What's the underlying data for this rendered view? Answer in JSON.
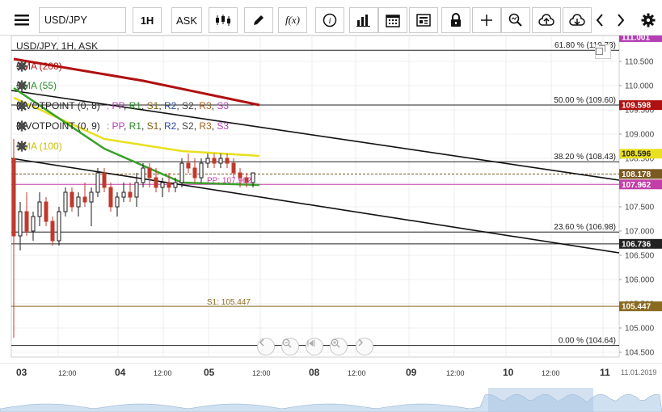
{
  "toolbar": {
    "symbol": "USD/JPY",
    "timeframe": "1H",
    "price_side": "ASK",
    "fx_label": "f(x)",
    "info_label": "i"
  },
  "legend": {
    "title": "USD/JPY, 1H, ASK",
    "sma200": "SMA (200)",
    "sma55": "SMA (55)",
    "pivot1": "PIVOTPOINT (0, 8)",
    "pivot2": "PIVOTPOINT (0, 9)",
    "sma100": "SMA (100)",
    "pivot_parts": [
      {
        "t": ": PP",
        "c": "#b43fb4"
      },
      {
        "t": ", ",
        "c": "#222"
      },
      {
        "t": "R1",
        "c": "#2a8a2a"
      },
      {
        "t": ", ",
        "c": "#222"
      },
      {
        "t": "S1",
        "c": "#806010"
      },
      {
        "t": ", ",
        "c": "#222"
      },
      {
        "t": "R2",
        "c": "#2a4aa0"
      },
      {
        "t": ", ",
        "c": "#222"
      },
      {
        "t": "S2",
        "c": "#444"
      },
      {
        "t": ", ",
        "c": "#222"
      },
      {
        "t": "R3",
        "c": "#a06020"
      },
      {
        "t": ", ",
        "c": "#222"
      },
      {
        "t": "S3",
        "c": "#b43fb4"
      }
    ]
  },
  "colors": {
    "sma200": "#b01010",
    "sma55": "#3aa02a",
    "sma100": "#e8e020",
    "candle_up": "#1a1a1a",
    "candle_down": "#c0392b",
    "pp": "#c23fa8",
    "s1": "#8a6a20",
    "current": "#7a5a20"
  },
  "price_axis": {
    "ticks": [
      "110.500",
      "110.000",
      "109.500",
      "109.000",
      "108.500",
      "108.000",
      "107.500",
      "107.000",
      "106.500",
      "106.000",
      "105.500",
      "105.000",
      "104.500"
    ],
    "tags": [
      {
        "label": "111.001",
        "color": "#b43fb4",
        "price": 111.001
      },
      {
        "label": "109.598",
        "color": "#b01010",
        "price": 109.598
      },
      {
        "label": "108.596",
        "color": "#e8e020",
        "price": 108.596,
        "text_color": "#222"
      },
      {
        "label": "108.178",
        "color": "#7a5a20",
        "price": 108.178
      },
      {
        "label": "107.962",
        "color": "#c23fa8",
        "price": 107.962
      },
      {
        "label": "106.736",
        "color": "#222222",
        "price": 106.736
      },
      {
        "label": "105.447",
        "color": "#8a6a20",
        "price": 105.447
      }
    ]
  },
  "fib_levels": [
    {
      "label": "61.80 % (110.73)",
      "price": 110.73
    },
    {
      "label": "50.00 % (109.60)",
      "price": 109.6
    },
    {
      "label": "38.20 % (108.43)",
      "price": 108.43
    },
    {
      "label": "23.60 % (106.98)",
      "price": 106.98
    },
    {
      "label": "0.00 % (104.64)",
      "price": 104.64
    }
  ],
  "pivot_labels": {
    "pp": "PP: 107.962",
    "s1": "S1: 105.447"
  },
  "time_axis": {
    "labels": [
      {
        "t": "03",
        "bold": true
      },
      {
        "t": "12:00",
        "bold": false
      },
      {
        "t": "04",
        "bold": true
      },
      {
        "t": "12:00",
        "bold": false
      },
      {
        "t": "05",
        "bold": true
      },
      {
        "t": "12:00",
        "bold": false
      },
      {
        "t": "08",
        "bold": true
      },
      {
        "t": "12:00",
        "bold": false
      },
      {
        "t": "09",
        "bold": true
      },
      {
        "t": "12:00",
        "bold": false
      },
      {
        "t": "10",
        "bold": true
      },
      {
        "t": "12:00",
        "bold": false
      },
      {
        "t": "11",
        "bold": true
      }
    ],
    "date_label": "11.01.2019"
  },
  "chart_data": {
    "type": "candlestick",
    "symbol": "USD/JPY",
    "timeframe": "1H",
    "ylim": [
      104.5,
      111.0
    ],
    "candles": [
      [
        108.5,
        108.9,
        104.8,
        106.9
      ],
      [
        106.9,
        107.6,
        106.6,
        107.4
      ],
      [
        107.4,
        107.8,
        106.9,
        107.0
      ],
      [
        107.0,
        107.4,
        106.8,
        107.3
      ],
      [
        107.3,
        107.8,
        107.1,
        107.6
      ],
      [
        107.6,
        107.7,
        107.1,
        107.2
      ],
      [
        107.2,
        107.3,
        106.7,
        106.8
      ],
      [
        106.8,
        107.5,
        106.7,
        107.4
      ],
      [
        107.4,
        107.9,
        107.3,
        107.8
      ],
      [
        107.8,
        107.9,
        107.4,
        107.5
      ],
      [
        107.5,
        107.8,
        107.3,
        107.7
      ],
      [
        107.7,
        108.0,
        107.5,
        107.6
      ],
      [
        107.6,
        107.9,
        107.1,
        107.8
      ],
      [
        107.8,
        108.3,
        107.7,
        108.2
      ],
      [
        108.2,
        108.3,
        107.8,
        107.9
      ],
      [
        107.9,
        108.0,
        107.4,
        107.5
      ],
      [
        107.5,
        107.8,
        107.3,
        107.7
      ],
      [
        107.7,
        108.0,
        107.6,
        107.8
      ],
      [
        107.8,
        108.0,
        107.6,
        107.7
      ],
      [
        107.7,
        108.2,
        107.5,
        108.0
      ],
      [
        108.0,
        108.4,
        107.9,
        108.3
      ],
      [
        108.3,
        108.4,
        107.9,
        108.1
      ],
      [
        108.1,
        108.3,
        107.8,
        107.9
      ],
      [
        107.9,
        108.1,
        107.7,
        108.0
      ],
      [
        108.0,
        108.2,
        107.8,
        107.9
      ],
      [
        107.9,
        108.1,
        107.8,
        108.0
      ],
      [
        108.0,
        108.5,
        107.9,
        108.4
      ],
      [
        108.4,
        108.6,
        108.2,
        108.3
      ],
      [
        108.3,
        108.5,
        108.0,
        108.1
      ],
      [
        108.1,
        108.5,
        108.0,
        108.4
      ],
      [
        108.4,
        108.6,
        108.3,
        108.5
      ],
      [
        108.5,
        108.6,
        108.3,
        108.4
      ],
      [
        108.4,
        108.6,
        108.3,
        108.5
      ],
      [
        108.5,
        108.6,
        108.3,
        108.4
      ],
      [
        108.4,
        108.5,
        108.1,
        108.2
      ],
      [
        108.2,
        108.3,
        107.9,
        108.1
      ],
      [
        108.1,
        108.2,
        107.9,
        108.0
      ],
      [
        108.0,
        108.2,
        107.9,
        108.2
      ]
    ],
    "sma200": [
      [
        0,
        110.55
      ],
      [
        20,
        110.1
      ],
      [
        38,
        109.6
      ]
    ],
    "sma55": [
      [
        0,
        109.95
      ],
      [
        14,
        108.7
      ],
      [
        26,
        108.0
      ],
      [
        38,
        107.95
      ]
    ],
    "sma100": [
      [
        0,
        109.75
      ],
      [
        14,
        108.9
      ],
      [
        26,
        108.65
      ],
      [
        38,
        108.55
      ]
    ],
    "trend_lines": [
      {
        "from": [
          0,
          109.9
        ],
        "to": [
          100,
          108.05
        ]
      },
      {
        "from": [
          0,
          108.5
        ],
        "to": [
          100,
          106.55
        ]
      }
    ],
    "horizontal_lines": [
      {
        "price": 108.178,
        "style": "dashed",
        "color": "#7a5a20"
      },
      {
        "price": 107.962,
        "style": "solid",
        "color": "#c23fa8"
      },
      {
        "price": 106.736,
        "style": "solid",
        "color": "#222"
      },
      {
        "price": 105.447,
        "style": "solid",
        "color": "#8a6a20"
      }
    ]
  }
}
